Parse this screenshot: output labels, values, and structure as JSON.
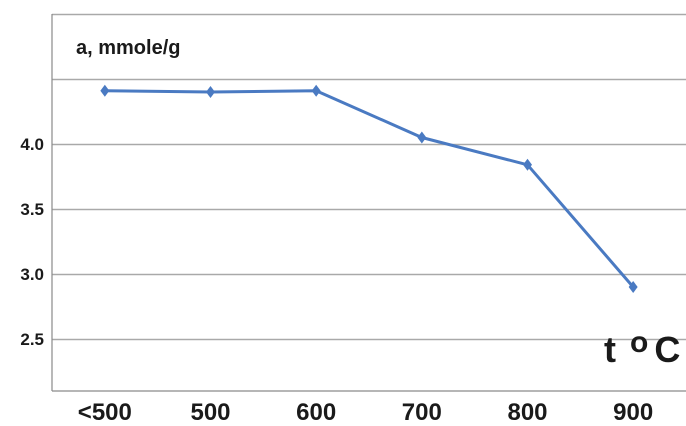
{
  "chart_data": {
    "type": "line",
    "categories": [
      "<500",
      "500",
      "600",
      "700",
      "800",
      "900"
    ],
    "series": [
      {
        "values": [
          4.41,
          4.4,
          4.41,
          4.05,
          3.84,
          2.9
        ]
      }
    ],
    "ylabel": "a, mmole/g",
    "xlabel": {
      "main": "t",
      "superscript": "o",
      "unit": "C"
    },
    "y_ticks": [
      "2.5",
      "3.0",
      "3.5",
      "4.0"
    ],
    "ylim": [
      2.1,
      5.0
    ],
    "grid": true,
    "legend": "none",
    "line_color": "#4a7ac2",
    "marker": "diamond"
  }
}
